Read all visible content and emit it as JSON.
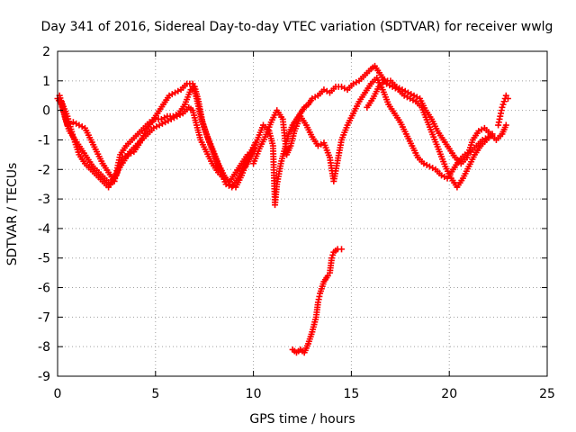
{
  "chart_data": {
    "type": "scatter",
    "title": "Day 341 of 2016, Sidereal Day-to-day VTEC variation (SDTVAR) for receiver wwlg",
    "xlabel": "GPS time / hours",
    "ylabel": "SDTVAR / TECUs",
    "xlim": [
      0,
      25
    ],
    "ylim": [
      -9,
      2
    ],
    "xticks": [
      0,
      5,
      10,
      15,
      20,
      25
    ],
    "yticks": [
      2,
      1,
      0,
      -1,
      -2,
      -3,
      -4,
      -5,
      -6,
      -7,
      -8,
      -9
    ],
    "grid": true,
    "marker": "+",
    "color": "#ff0000",
    "series": [
      {
        "name": "trace-a",
        "points": [
          [
            0.0,
            0.4
          ],
          [
            0.2,
            0.2
          ],
          [
            0.4,
            -0.3
          ],
          [
            0.6,
            -0.7
          ],
          [
            0.9,
            -1.0
          ],
          [
            1.2,
            -1.3
          ],
          [
            1.5,
            -1.6
          ],
          [
            1.8,
            -1.9
          ],
          [
            2.1,
            -2.1
          ],
          [
            2.4,
            -2.3
          ],
          [
            2.7,
            -2.5
          ],
          [
            2.9,
            -2.3
          ],
          [
            3.1,
            -2.0
          ],
          [
            3.4,
            -1.7
          ],
          [
            3.7,
            -1.4
          ],
          [
            4.0,
            -1.2
          ],
          [
            4.3,
            -1.0
          ],
          [
            4.6,
            -0.8
          ],
          [
            4.9,
            -0.6
          ],
          [
            5.2,
            -0.5
          ],
          [
            5.5,
            -0.4
          ],
          [
            5.8,
            -0.3
          ],
          [
            6.1,
            -0.2
          ],
          [
            6.4,
            -0.1
          ],
          [
            6.7,
            0.1
          ],
          [
            6.9,
            0.0
          ],
          [
            7.1,
            -0.5
          ],
          [
            7.3,
            -1.0
          ],
          [
            7.6,
            -1.4
          ],
          [
            7.9,
            -1.8
          ],
          [
            8.2,
            -2.1
          ],
          [
            8.5,
            -2.3
          ],
          [
            8.8,
            -2.4
          ],
          [
            9.1,
            -2.1
          ],
          [
            9.4,
            -1.8
          ],
          [
            9.7,
            -1.5
          ]
        ]
      },
      {
        "name": "trace-b",
        "points": [
          [
            0.1,
            0.5
          ],
          [
            0.3,
            0.0
          ],
          [
            0.5,
            -0.5
          ],
          [
            0.8,
            -0.4
          ],
          [
            1.1,
            -0.5
          ],
          [
            1.4,
            -0.6
          ],
          [
            1.7,
            -1.0
          ],
          [
            2.0,
            -1.4
          ],
          [
            2.3,
            -1.8
          ],
          [
            2.6,
            -2.1
          ],
          [
            2.9,
            -2.4
          ],
          [
            3.2,
            -1.5
          ],
          [
            3.5,
            -1.2
          ],
          [
            3.8,
            -1.0
          ],
          [
            4.1,
            -0.8
          ],
          [
            4.4,
            -0.6
          ],
          [
            4.7,
            -0.4
          ],
          [
            5.0,
            -0.3
          ],
          [
            5.3,
            -0.3
          ],
          [
            5.6,
            -0.2
          ],
          [
            5.9,
            -0.2
          ],
          [
            6.2,
            -0.1
          ],
          [
            6.5,
            0.2
          ],
          [
            6.8,
            0.7
          ],
          [
            7.0,
            0.8
          ],
          [
            7.2,
            0.3
          ],
          [
            7.4,
            -0.4
          ],
          [
            7.7,
            -1.0
          ],
          [
            8.0,
            -1.5
          ],
          [
            8.3,
            -2.0
          ],
          [
            8.6,
            -2.5
          ],
          [
            8.9,
            -2.6
          ],
          [
            9.2,
            -2.3
          ],
          [
            9.5,
            -1.9
          ],
          [
            9.8,
            -1.5
          ],
          [
            10.1,
            -1.1
          ]
        ]
      },
      {
        "name": "trace-c",
        "points": [
          [
            0.2,
            0.3
          ],
          [
            0.5,
            -0.2
          ],
          [
            0.8,
            -0.9
          ],
          [
            1.1,
            -1.5
          ],
          [
            1.4,
            -1.8
          ],
          [
            1.7,
            -2.0
          ],
          [
            2.0,
            -2.2
          ],
          [
            2.3,
            -2.4
          ],
          [
            2.6,
            -2.6
          ],
          [
            3.0,
            -2.2
          ],
          [
            3.3,
            -1.6
          ],
          [
            3.6,
            -1.5
          ],
          [
            3.9,
            -1.4
          ],
          [
            4.2,
            -1.1
          ],
          [
            4.5,
            -0.7
          ],
          [
            4.8,
            -0.4
          ],
          [
            5.1,
            -0.1
          ],
          [
            5.4,
            0.2
          ],
          [
            5.7,
            0.5
          ],
          [
            6.0,
            0.6
          ],
          [
            6.3,
            0.7
          ],
          [
            6.6,
            0.9
          ],
          [
            6.9,
            0.9
          ],
          [
            7.1,
            0.4
          ],
          [
            7.3,
            -0.2
          ],
          [
            7.6,
            -0.8
          ],
          [
            7.9,
            -1.3
          ],
          [
            8.2,
            -1.8
          ],
          [
            8.5,
            -2.2
          ],
          [
            8.8,
            -2.5
          ],
          [
            9.1,
            -2.6
          ],
          [
            9.4,
            -2.2
          ],
          [
            9.7,
            -1.7
          ],
          [
            10.0,
            -1.3
          ]
        ]
      },
      {
        "name": "trace-d",
        "points": [
          [
            9.6,
            -1.9
          ],
          [
            9.9,
            -1.5
          ],
          [
            10.2,
            -1.0
          ],
          [
            10.5,
            -0.5
          ],
          [
            10.8,
            -0.7
          ],
          [
            11.0,
            -1.2
          ],
          [
            11.1,
            -3.2
          ],
          [
            11.2,
            -2.5
          ],
          [
            11.4,
            -1.8
          ],
          [
            11.6,
            -1.3
          ],
          [
            11.8,
            -0.8
          ],
          [
            12.0,
            -0.5
          ],
          [
            12.2,
            -0.3
          ],
          [
            12.4,
            -0.1
          ],
          [
            12.6,
            0.1
          ],
          [
            12.8,
            0.2
          ],
          [
            13.0,
            0.4
          ],
          [
            13.3,
            0.5
          ],
          [
            13.6,
            0.7
          ],
          [
            13.9,
            0.6
          ],
          [
            14.2,
            0.8
          ],
          [
            14.5,
            0.8
          ],
          [
            14.8,
            0.7
          ],
          [
            15.1,
            0.9
          ],
          [
            15.4,
            1.0
          ],
          [
            15.7,
            1.2
          ],
          [
            16.0,
            1.4
          ],
          [
            16.2,
            1.5
          ],
          [
            16.5,
            1.2
          ],
          [
            16.8,
            0.9
          ],
          [
            17.1,
            0.8
          ],
          [
            17.4,
            0.7
          ],
          [
            17.7,
            0.5
          ],
          [
            18.0,
            0.4
          ],
          [
            18.3,
            0.3
          ],
          [
            18.6,
            0.1
          ],
          [
            18.9,
            -0.4
          ],
          [
            19.2,
            -0.9
          ],
          [
            19.5,
            -1.4
          ],
          [
            19.8,
            -1.9
          ],
          [
            20.1,
            -2.3
          ],
          [
            20.4,
            -2.6
          ],
          [
            20.7,
            -2.3
          ],
          [
            21.0,
            -1.9
          ],
          [
            21.3,
            -1.5
          ],
          [
            21.6,
            -1.2
          ],
          [
            21.9,
            -1.0
          ],
          [
            22.2,
            -0.8
          ]
        ]
      },
      {
        "name": "trace-e",
        "points": [
          [
            10.0,
            -1.8
          ],
          [
            10.3,
            -1.3
          ],
          [
            10.6,
            -0.9
          ],
          [
            10.9,
            -0.4
          ],
          [
            11.2,
            0.0
          ],
          [
            11.5,
            -0.3
          ],
          [
            11.7,
            -1.5
          ],
          [
            11.9,
            -1.2
          ],
          [
            12.1,
            -0.7
          ],
          [
            12.4,
            -0.2
          ],
          [
            12.7,
            -0.5
          ],
          [
            13.0,
            -0.9
          ],
          [
            13.3,
            -1.2
          ],
          [
            13.6,
            -1.1
          ],
          [
            13.9,
            -1.6
          ],
          [
            14.1,
            -2.4
          ],
          [
            14.3,
            -1.7
          ],
          [
            14.5,
            -1.0
          ],
          [
            14.8,
            -0.5
          ],
          [
            15.1,
            -0.1
          ],
          [
            15.4,
            0.3
          ],
          [
            15.7,
            0.6
          ],
          [
            16.0,
            0.9
          ],
          [
            16.3,
            1.1
          ],
          [
            16.6,
            0.7
          ],
          [
            16.9,
            0.2
          ],
          [
            17.2,
            -0.1
          ],
          [
            17.5,
            -0.4
          ],
          [
            17.8,
            -0.8
          ],
          [
            18.1,
            -1.2
          ],
          [
            18.4,
            -1.6
          ],
          [
            18.7,
            -1.8
          ],
          [
            19.0,
            -1.9
          ],
          [
            19.3,
            -2.0
          ],
          [
            19.6,
            -2.2
          ],
          [
            19.9,
            -2.3
          ],
          [
            20.2,
            -2.0
          ],
          [
            20.5,
            -1.7
          ],
          [
            20.8,
            -1.5
          ],
          [
            21.1,
            -1.4
          ],
          [
            21.4,
            -1.2
          ],
          [
            21.7,
            -1.0
          ],
          [
            22.0,
            -0.9
          ]
        ]
      },
      {
        "name": "trace-f",
        "points": [
          [
            15.8,
            0.1
          ],
          [
            16.1,
            0.4
          ],
          [
            16.4,
            0.8
          ],
          [
            16.7,
            1.0
          ],
          [
            17.0,
            1.0
          ],
          [
            17.3,
            0.8
          ],
          [
            17.6,
            0.7
          ],
          [
            17.9,
            0.6
          ],
          [
            18.2,
            0.5
          ],
          [
            18.5,
            0.4
          ],
          [
            18.8,
            0.0
          ],
          [
            19.1,
            -0.3
          ],
          [
            19.4,
            -0.7
          ],
          [
            19.7,
            -1.0
          ],
          [
            20.0,
            -1.3
          ],
          [
            20.3,
            -1.6
          ],
          [
            20.6,
            -1.8
          ],
          [
            20.9,
            -1.6
          ],
          [
            21.2,
            -1.0
          ],
          [
            21.5,
            -0.7
          ],
          [
            21.8,
            -0.6
          ],
          [
            22.1,
            -0.8
          ],
          [
            22.4,
            -1.0
          ],
          [
            22.7,
            -0.8
          ],
          [
            22.9,
            -0.5
          ]
        ]
      },
      {
        "name": "trace-g",
        "points": [
          [
            12.0,
            -8.1
          ],
          [
            12.2,
            -8.2
          ],
          [
            12.4,
            -8.1
          ],
          [
            12.6,
            -8.2
          ],
          [
            12.8,
            -7.9
          ],
          [
            13.0,
            -7.5
          ],
          [
            13.2,
            -7.0
          ],
          [
            13.3,
            -6.5
          ],
          [
            13.4,
            -6.2
          ],
          [
            13.6,
            -5.8
          ],
          [
            13.8,
            -5.6
          ],
          [
            13.9,
            -5.5
          ],
          [
            14.0,
            -5.0
          ],
          [
            14.1,
            -4.8
          ],
          [
            14.3,
            -4.7
          ],
          [
            14.5,
            -4.7
          ]
        ]
      },
      {
        "name": "trace-h",
        "points": [
          [
            22.5,
            -0.5
          ],
          [
            22.6,
            -0.2
          ],
          [
            22.7,
            0.1
          ],
          [
            22.8,
            0.3
          ],
          [
            22.9,
            0.5
          ],
          [
            23.0,
            0.4
          ]
        ]
      }
    ]
  }
}
